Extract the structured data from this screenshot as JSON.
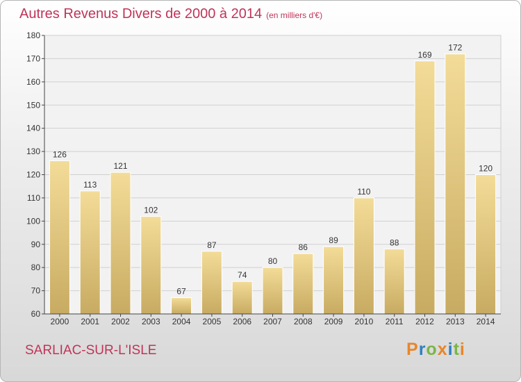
{
  "title": "Autres Revenus Divers de 2000 à 2014",
  "unit": "(en milliers d'€)",
  "commune": "SARLIAC-SUR-L'ISLE",
  "logo": {
    "letters": [
      "P",
      "r",
      "o",
      "x",
      "i",
      "t",
      "i"
    ],
    "colors": [
      "#e8862a",
      "#2f7fc1",
      "#7ab648",
      "#e8862a",
      "#2f7fc1",
      "#7ab648",
      "#e8862a"
    ]
  },
  "colors": {
    "title": "#c03458",
    "bar_light": "#f3dc98",
    "bar_dark": "#c8ab62"
  },
  "chart_data": {
    "type": "bar",
    "categories": [
      "2000",
      "2001",
      "2002",
      "2003",
      "2004",
      "2005",
      "2006",
      "2007",
      "2008",
      "2009",
      "2010",
      "2011",
      "2012",
      "2013",
      "2014"
    ],
    "values": [
      126,
      113,
      121,
      102,
      67,
      87,
      74,
      80,
      86,
      89,
      110,
      88,
      169,
      172,
      120
    ],
    "y_ticks": [
      60,
      70,
      80,
      90,
      100,
      110,
      120,
      130,
      140,
      150,
      160,
      170,
      180
    ],
    "ylim": [
      60,
      180
    ],
    "grid": true,
    "data_labels": true
  }
}
